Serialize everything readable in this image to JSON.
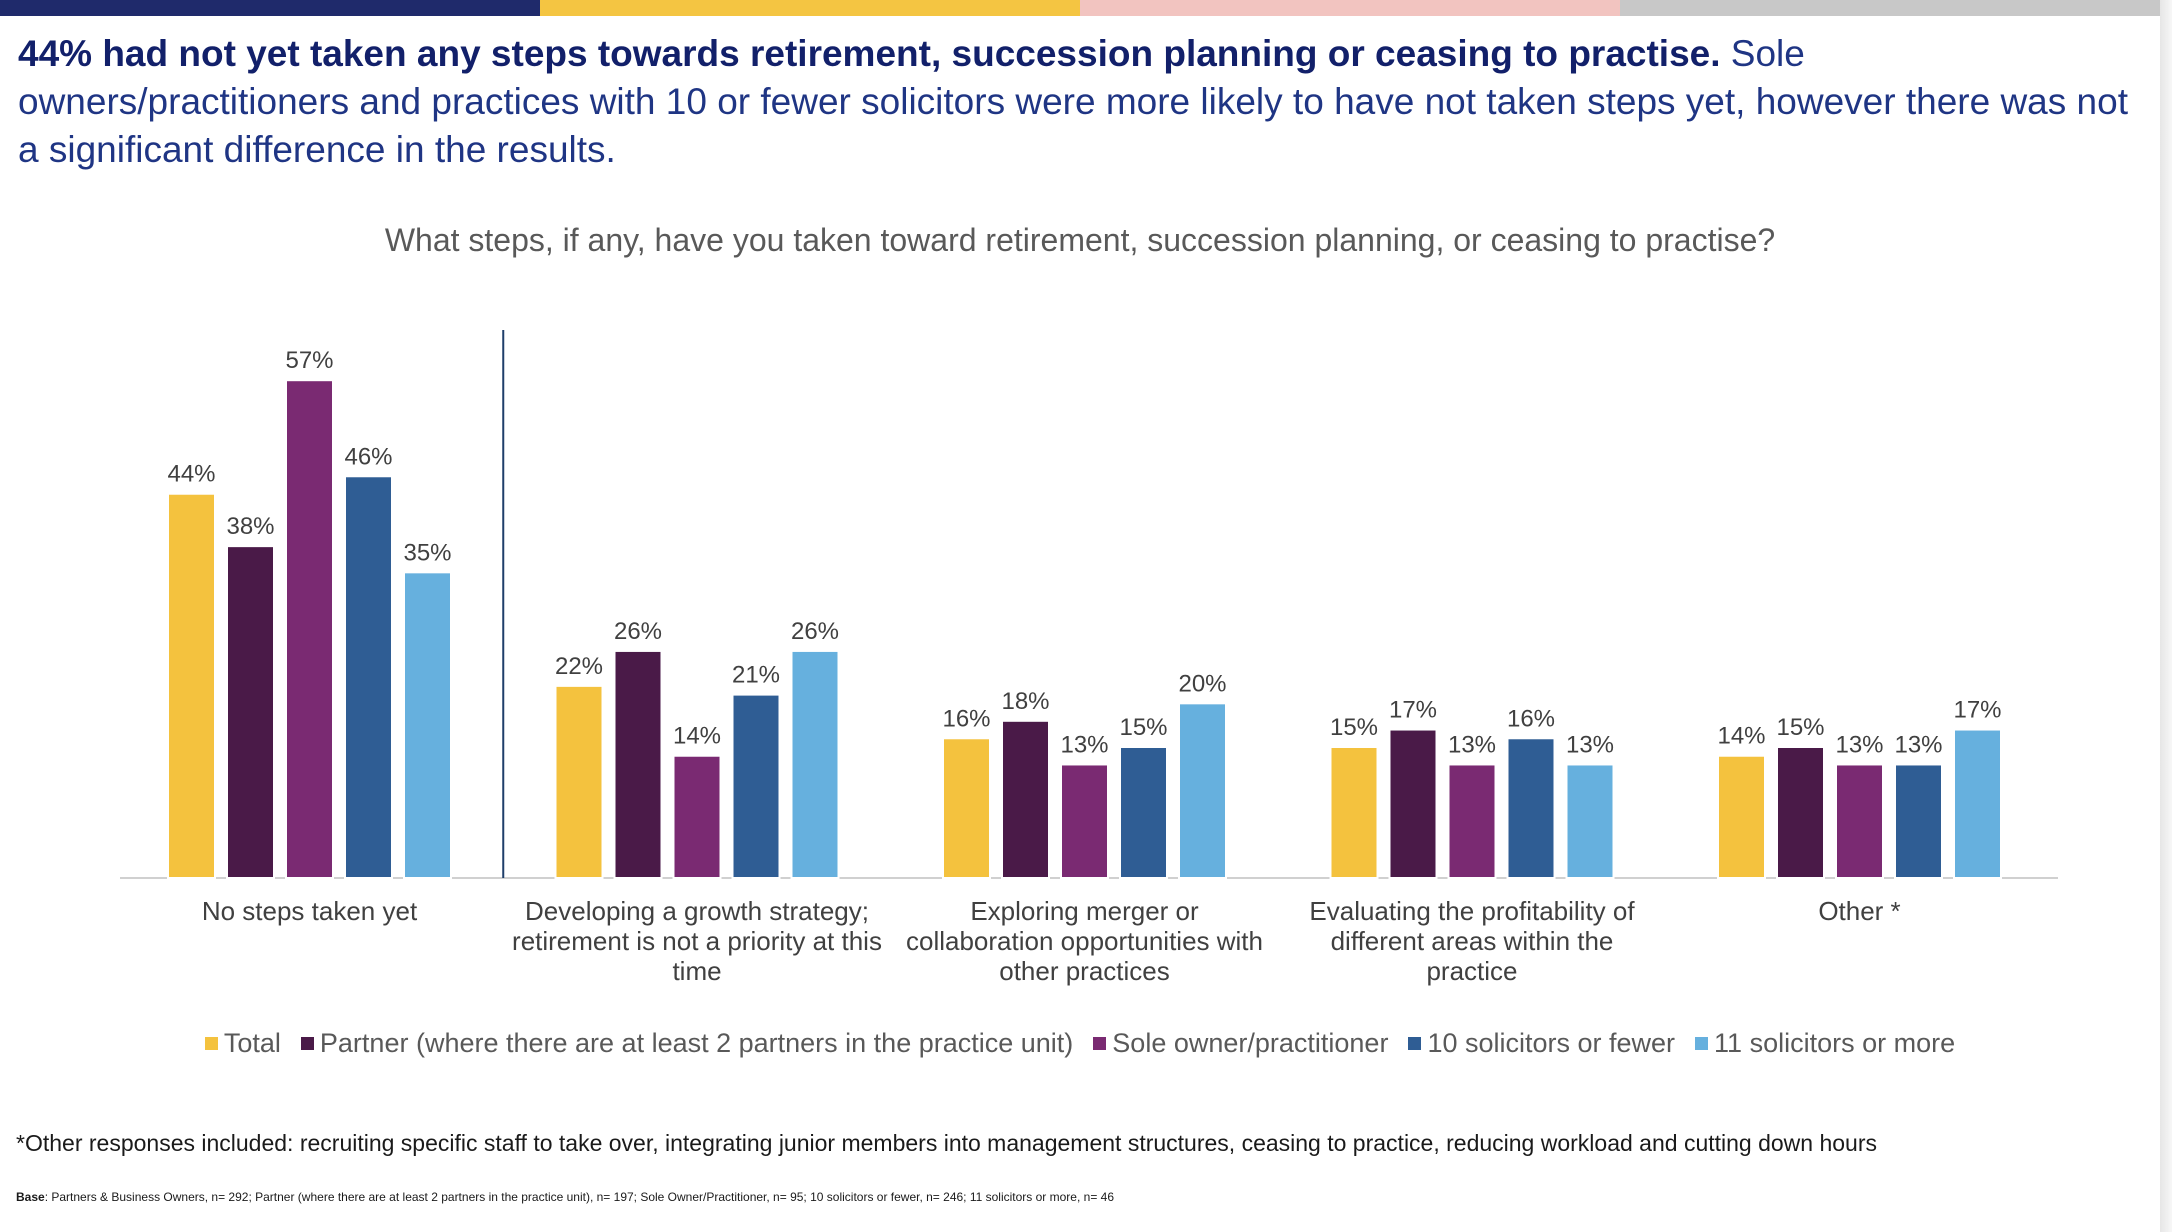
{
  "header": {
    "headline_bold": "44% had not yet taken any steps towards retirement, succession planning or ceasing to practise.",
    "headline_rest": " Sole owners/practitioners and practices with 10 or fewer solicitors were more likely to have not taken steps yet, however there was not a significant difference in the results.",
    "top_bar_colors": [
      "#1f2a6b",
      "#f4c542",
      "#f2c4c0",
      "#c8c8c8"
    ]
  },
  "chart_data": {
    "type": "bar",
    "title": "What steps, if any, have you taken toward retirement, succession planning, or ceasing to practise?",
    "categories": [
      [
        "No steps taken yet"
      ],
      [
        "Developing a growth strategy;",
        "retirement is not a priority at this",
        "time"
      ],
      [
        "Exploring merger or",
        "collaboration opportunities with",
        "other practices"
      ],
      [
        "Evaluating the profitability of",
        "different areas within the",
        "practice"
      ],
      [
        "Other *"
      ]
    ],
    "series": [
      {
        "name": "Total",
        "color": "#f4c23e",
        "values": [
          44,
          22,
          16,
          15,
          14
        ]
      },
      {
        "name": "Partner (where there are at least 2 partners in the practice unit)",
        "color": "#4a1a48",
        "values": [
          38,
          26,
          18,
          17,
          15
        ]
      },
      {
        "name": "Sole owner/practitioner",
        "color": "#7a2a72",
        "values": [
          57,
          14,
          13,
          13,
          13
        ]
      },
      {
        "name": "10 solicitors or fewer",
        "color": "#2f5d94",
        "values": [
          46,
          21,
          15,
          16,
          13
        ]
      },
      {
        "name": "11 solicitors or more",
        "color": "#66b0de",
        "values": [
          35,
          26,
          20,
          13,
          17
        ]
      }
    ],
    "value_suffix": "%",
    "ylim": [
      0,
      60
    ],
    "legend_position": "bottom",
    "grid": false,
    "divider_after_category": 0
  },
  "footnote": "*Other responses included: recruiting specific staff to take over, integrating junior members into management structures, ceasing to practice, reducing workload and cutting down hours",
  "base": {
    "label": "Base",
    "text": ": Partners & Business Owners, n= 292; Partner (where there are at least 2 partners in the practice unit), n= 197; Sole Owner/Practitioner, n= 95; 10 solicitors or fewer, n= 246; 11 solicitors or more, n= 46"
  }
}
